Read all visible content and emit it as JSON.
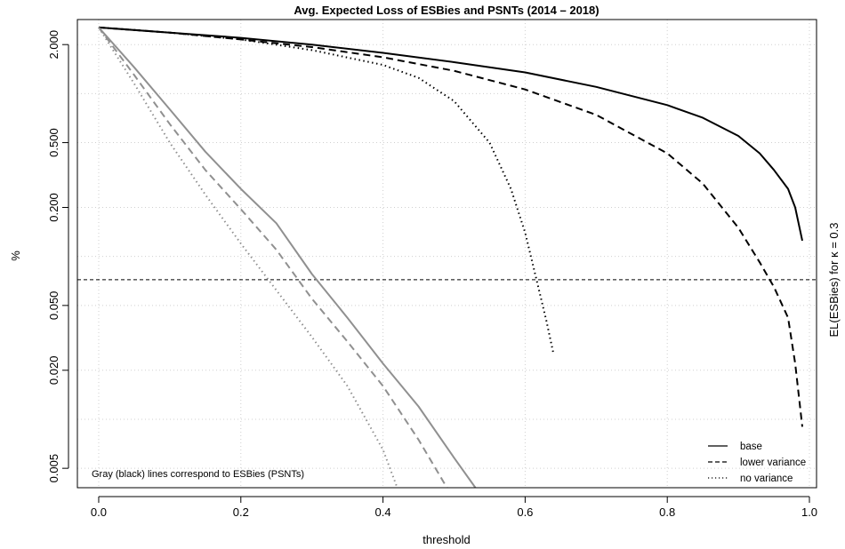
{
  "chart_data": {
    "type": "line",
    "title": "Avg. Expected Loss of ESBies and PSNTs (2014 – 2018)",
    "xlabel": "threshold",
    "ylabel": "%",
    "right_label": "EL(ESBies) for κ = 0.3",
    "y_scale": "log",
    "xlim": [
      -0.03,
      1.01
    ],
    "ylim": [
      0.0038,
      2.85
    ],
    "x_ticks": [
      "0.0",
      "0.2",
      "0.4",
      "0.6",
      "0.8",
      "1.0"
    ],
    "y_ticks": [
      "0.005",
      "0.020",
      "0.050",
      "0.200",
      "0.500",
      "2.000"
    ],
    "grid": true,
    "reference_line": {
      "y": 0.072,
      "style": "dashed"
    },
    "note": "Gray (black) lines correspond to ESBies (PSNTs)",
    "legend": {
      "position": "bottom-right",
      "entries": [
        {
          "label": "base",
          "dash": "solid"
        },
        {
          "label": "lower variance",
          "dash": "dashed"
        },
        {
          "label": "no variance",
          "dash": "dotted"
        }
      ]
    },
    "series": [
      {
        "group": "PSNTs",
        "variant": "base",
        "color": "#000000",
        "dash": "solid",
        "points": [
          [
            0,
            2.55
          ],
          [
            0.1,
            2.37
          ],
          [
            0.2,
            2.2
          ],
          [
            0.3,
            2.0
          ],
          [
            0.4,
            1.78
          ],
          [
            0.5,
            1.56
          ],
          [
            0.6,
            1.35
          ],
          [
            0.7,
            1.1
          ],
          [
            0.8,
            0.85
          ],
          [
            0.85,
            0.71
          ],
          [
            0.9,
            0.55
          ],
          [
            0.93,
            0.43
          ],
          [
            0.95,
            0.34
          ],
          [
            0.97,
            0.26
          ],
          [
            0.98,
            0.2
          ],
          [
            0.99,
            0.125
          ]
        ]
      },
      {
        "group": "PSNTs",
        "variant": "lower variance",
        "color": "#000000",
        "dash": "dashed",
        "points": [
          [
            0,
            2.55
          ],
          [
            0.1,
            2.37
          ],
          [
            0.2,
            2.15
          ],
          [
            0.3,
            1.93
          ],
          [
            0.4,
            1.67
          ],
          [
            0.5,
            1.38
          ],
          [
            0.6,
            1.06
          ],
          [
            0.7,
            0.74
          ],
          [
            0.8,
            0.43
          ],
          [
            0.85,
            0.28
          ],
          [
            0.9,
            0.15
          ],
          [
            0.93,
            0.092
          ],
          [
            0.95,
            0.065
          ],
          [
            0.97,
            0.042
          ],
          [
            0.98,
            0.022
          ],
          [
            0.99,
            0.009
          ]
        ]
      },
      {
        "group": "PSNTs",
        "variant": "no variance",
        "color": "#000000",
        "dash": "dotted",
        "points": [
          [
            0,
            2.55
          ],
          [
            0.1,
            2.37
          ],
          [
            0.2,
            2.15
          ],
          [
            0.3,
            1.85
          ],
          [
            0.4,
            1.5
          ],
          [
            0.45,
            1.25
          ],
          [
            0.5,
            0.9
          ],
          [
            0.55,
            0.5
          ],
          [
            0.58,
            0.26
          ],
          [
            0.6,
            0.14
          ],
          [
            0.615,
            0.075
          ],
          [
            0.63,
            0.04
          ],
          [
            0.64,
            0.025
          ]
        ]
      },
      {
        "group": "ESBies",
        "variant": "base",
        "color": "#909090",
        "dash": "solid",
        "points": [
          [
            0,
            2.55
          ],
          [
            0.05,
            1.45
          ],
          [
            0.1,
            0.8
          ],
          [
            0.15,
            0.44
          ],
          [
            0.2,
            0.26
          ],
          [
            0.25,
            0.16
          ],
          [
            0.3,
            0.078
          ],
          [
            0.35,
            0.042
          ],
          [
            0.4,
            0.022
          ],
          [
            0.45,
            0.012
          ],
          [
            0.5,
            0.0058
          ],
          [
            0.53,
            0.0038
          ]
        ]
      },
      {
        "group": "ESBies",
        "variant": "lower variance",
        "color": "#909090",
        "dash": "dashed",
        "points": [
          [
            0,
            2.55
          ],
          [
            0.05,
            1.3
          ],
          [
            0.1,
            0.65
          ],
          [
            0.15,
            0.34
          ],
          [
            0.2,
            0.195
          ],
          [
            0.25,
            0.11
          ],
          [
            0.3,
            0.055
          ],
          [
            0.35,
            0.03
          ],
          [
            0.4,
            0.016
          ],
          [
            0.45,
            0.0075
          ],
          [
            0.49,
            0.0038
          ]
        ]
      },
      {
        "group": "ESBies",
        "variant": "no variance",
        "color": "#909090",
        "dash": "dotted",
        "points": [
          [
            0,
            2.55
          ],
          [
            0.05,
            1.15
          ],
          [
            0.1,
            0.5
          ],
          [
            0.15,
            0.24
          ],
          [
            0.2,
            0.12
          ],
          [
            0.25,
            0.062
          ],
          [
            0.3,
            0.032
          ],
          [
            0.35,
            0.016
          ],
          [
            0.4,
            0.0065
          ],
          [
            0.42,
            0.0038
          ]
        ]
      }
    ]
  }
}
